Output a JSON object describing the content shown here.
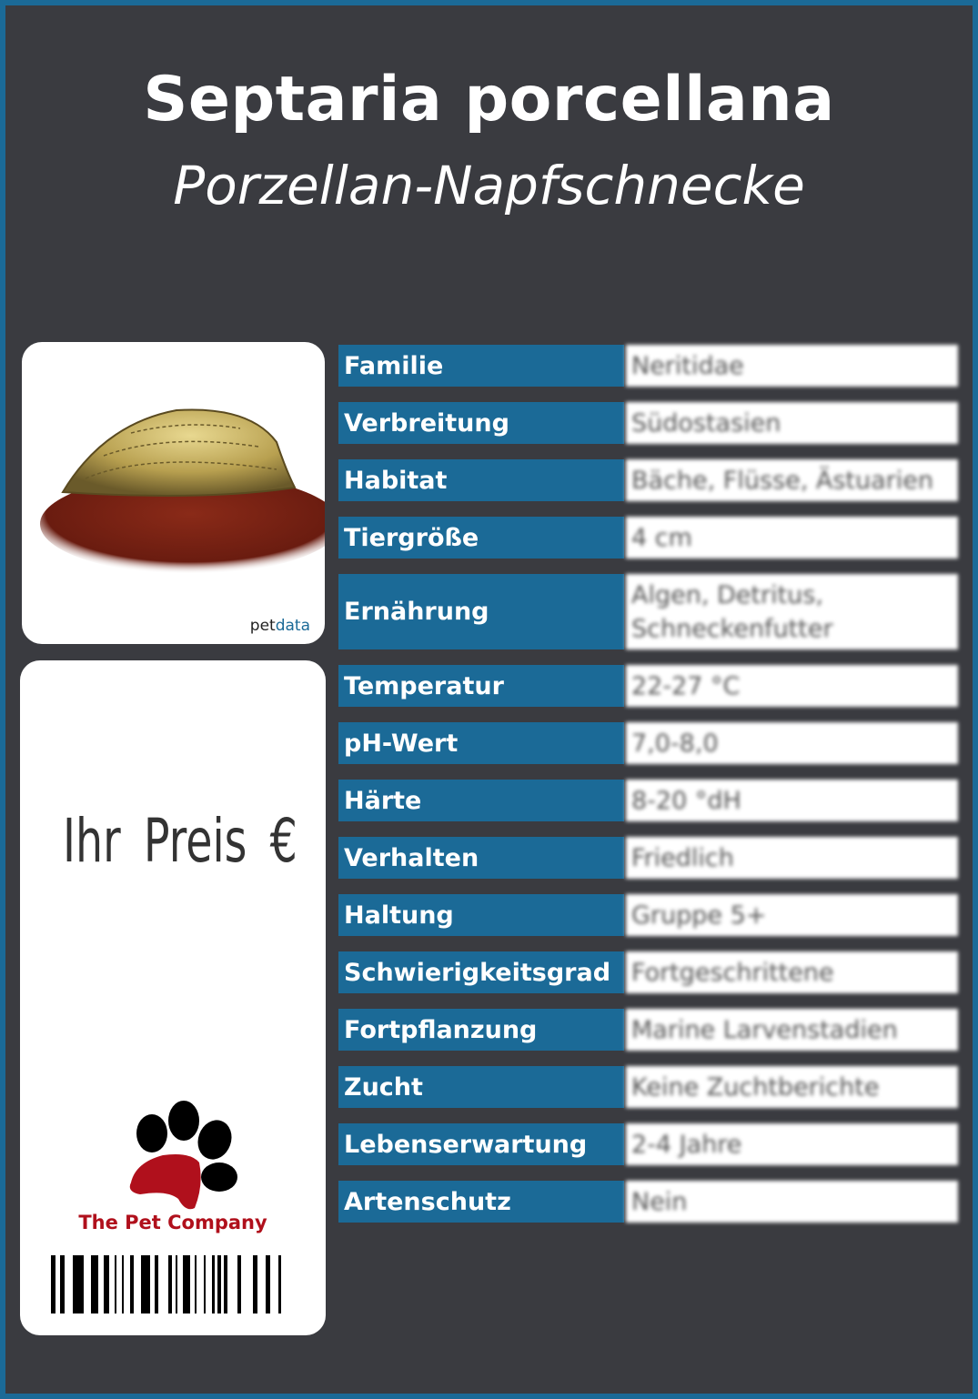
{
  "title": "Septaria porcellana",
  "subtitle": "Porzellan-Napfschnecke",
  "image_card": {
    "logo_text_a": "pet",
    "logo_text_b": "data"
  },
  "price_card": {
    "price_label": "Ihr Preis €",
    "company": "The Pet Company"
  },
  "colors": {
    "label_bg": "#1b6a97",
    "background": "#3a3b40",
    "brand_red": "#b0101c"
  },
  "rows": [
    {
      "label": "Familie",
      "value": "Neritidae"
    },
    {
      "label": "Verbreitung",
      "value": "Südostasien"
    },
    {
      "label": "Habitat",
      "value": "Bäche, Flüsse, Ästuarien"
    },
    {
      "label": "Tiergröße",
      "value": "4 cm"
    },
    {
      "label": "Ernährung",
      "value": "Algen, Detritus, Schneckenfutter"
    },
    {
      "label": "Temperatur",
      "value": "22-27 °C"
    },
    {
      "label": "pH-Wert",
      "value": "7,0-8,0"
    },
    {
      "label": "Härte",
      "value": "8-20 °dH"
    },
    {
      "label": "Verhalten",
      "value": "Friedlich"
    },
    {
      "label": "Haltung",
      "value": "Gruppe 5+"
    },
    {
      "label": "Schwierigkeitsgrad",
      "value": "Fortgeschrittene"
    },
    {
      "label": "Fortpflanzung",
      "value": "Marine Larvenstadien"
    },
    {
      "label": "Zucht",
      "value": "Keine Zuchtberichte"
    },
    {
      "label": "Lebenserwartung",
      "value": "2-4 Jahre"
    },
    {
      "label": "Artenschutz",
      "value": "Nein"
    }
  ]
}
